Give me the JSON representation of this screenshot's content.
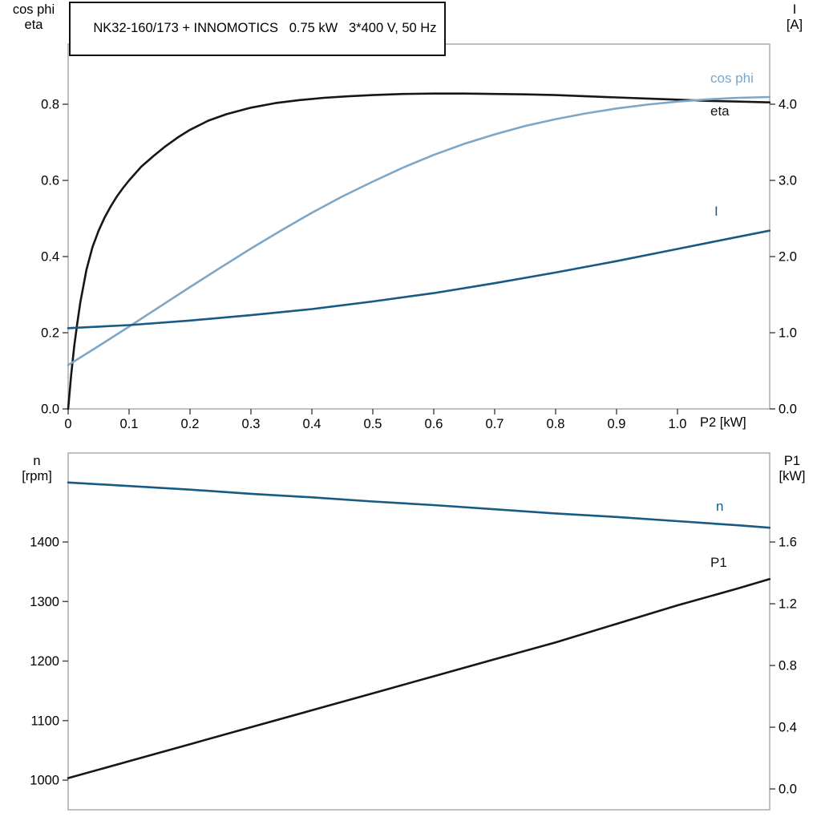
{
  "page": {
    "background": "#ffffff"
  },
  "title_box": {
    "text": "NK32-160/173 + INNOMOTICS   0.75 kW   3*400 V, 50 Hz"
  },
  "axis_corner_labels": {
    "top_left": [
      "cos phi",
      "eta"
    ],
    "top_right": [
      "I",
      "[A]"
    ],
    "bottom_left": [
      "n",
      "[rpm]"
    ],
    "bottom_right": [
      "P1",
      "[kW]"
    ]
  },
  "colors": {
    "black_curve": "#161616",
    "light_blue_curve": "#7ea6c6",
    "dark_blue_curve": "#175a83",
    "frame": "#a6a6a6",
    "tick": "#404040"
  },
  "chart_data": [
    {
      "type": "line",
      "id": "upper",
      "title": "NK32-160/173 + INNOMOTICS   0.75 kW   3*400 V, 50 Hz",
      "xlabel": "P2 [kW]",
      "xlim": [
        0,
        1.1513
      ],
      "x_ticks": {
        "values": [
          0,
          0.1,
          0.2,
          0.3,
          0.4,
          0.5,
          0.6,
          0.7,
          0.8,
          0.9,
          1.0
        ],
        "labels": [
          "0",
          "0.1",
          "0.2",
          "0.3",
          "0.4",
          "0.5",
          "0.6",
          "0.7",
          "0.8",
          "0.9",
          "1.0"
        ]
      },
      "left_axis": {
        "label": "cos phi / eta",
        "lim": [
          0,
          0.958
        ],
        "ticks": [
          0.0,
          0.2,
          0.4,
          0.6,
          0.8
        ],
        "labels": [
          "0.0",
          "0.2",
          "0.4",
          "0.6",
          "0.8"
        ]
      },
      "right_axis": {
        "label": "I [A]",
        "lim": [
          0,
          4.789
        ],
        "ticks": [
          0.0,
          1.0,
          2.0,
          3.0,
          4.0
        ],
        "labels": [
          "0.0",
          "1.0",
          "2.0",
          "3.0",
          "4.0"
        ]
      },
      "grid": false,
      "series": [
        {
          "name": "eta",
          "label": "eta",
          "axis": "left",
          "color": "#161616",
          "points": [
            [
              0,
              0
            ],
            [
              0.005,
              0.09
            ],
            [
              0.01,
              0.165
            ],
            [
              0.015,
              0.225
            ],
            [
              0.02,
              0.28
            ],
            [
              0.03,
              0.365
            ],
            [
              0.04,
              0.425
            ],
            [
              0.05,
              0.468
            ],
            [
              0.06,
              0.503
            ],
            [
              0.07,
              0.532
            ],
            [
              0.08,
              0.558
            ],
            [
              0.09,
              0.58
            ],
            [
              0.1,
              0.6
            ],
            [
              0.12,
              0.636
            ],
            [
              0.14,
              0.664
            ],
            [
              0.16,
              0.69
            ],
            [
              0.18,
              0.713
            ],
            [
              0.2,
              0.733
            ],
            [
              0.23,
              0.757
            ],
            [
              0.26,
              0.774
            ],
            [
              0.3,
              0.791
            ],
            [
              0.34,
              0.803
            ],
            [
              0.38,
              0.811
            ],
            [
              0.42,
              0.817
            ],
            [
              0.46,
              0.821
            ],
            [
              0.5,
              0.824
            ],
            [
              0.55,
              0.827
            ],
            [
              0.6,
              0.828
            ],
            [
              0.65,
              0.828
            ],
            [
              0.7,
              0.827
            ],
            [
              0.75,
              0.826
            ],
            [
              0.8,
              0.824
            ],
            [
              0.85,
              0.821
            ],
            [
              0.9,
              0.818
            ],
            [
              0.95,
              0.815
            ],
            [
              1.0,
              0.812
            ],
            [
              1.05,
              0.809
            ],
            [
              1.1,
              0.807
            ],
            [
              1.151,
              0.805
            ]
          ]
        },
        {
          "name": "cos_phi",
          "label": "cos phi",
          "axis": "left",
          "color": "#7ea6c6",
          "points": [
            [
              0,
              0.115
            ],
            [
              0.05,
              0.165
            ],
            [
              0.1,
              0.216
            ],
            [
              0.15,
              0.268
            ],
            [
              0.2,
              0.32
            ],
            [
              0.25,
              0.371
            ],
            [
              0.3,
              0.421
            ],
            [
              0.35,
              0.469
            ],
            [
              0.4,
              0.515
            ],
            [
              0.45,
              0.558
            ],
            [
              0.5,
              0.597
            ],
            [
              0.55,
              0.634
            ],
            [
              0.6,
              0.667
            ],
            [
              0.65,
              0.696
            ],
            [
              0.7,
              0.721
            ],
            [
              0.75,
              0.743
            ],
            [
              0.8,
              0.761
            ],
            [
              0.85,
              0.776
            ],
            [
              0.9,
              0.789
            ],
            [
              0.95,
              0.799
            ],
            [
              1.0,
              0.807
            ],
            [
              1.05,
              0.813
            ],
            [
              1.1,
              0.817
            ],
            [
              1.151,
              0.819
            ]
          ]
        },
        {
          "name": "I",
          "label": "I",
          "axis": "right",
          "color": "#175a83",
          "points": [
            [
              0,
              1.06
            ],
            [
              0.1,
              1.1
            ],
            [
              0.2,
              1.16
            ],
            [
              0.3,
              1.23
            ],
            [
              0.4,
              1.31
            ],
            [
              0.5,
              1.41
            ],
            [
              0.6,
              1.52
            ],
            [
              0.7,
              1.65
            ],
            [
              0.8,
              1.79
            ],
            [
              0.9,
              1.94
            ],
            [
              1.0,
              2.1
            ],
            [
              1.1,
              2.26
            ],
            [
              1.151,
              2.34
            ]
          ]
        }
      ]
    },
    {
      "type": "line",
      "id": "lower",
      "title": "",
      "xlabel": "",
      "xlim": [
        0,
        1.1513
      ],
      "x_ticks": {
        "values": [],
        "labels": []
      },
      "left_axis": {
        "label": "n [rpm]",
        "lim": [
          950.2,
          1549.5
        ],
        "ticks": [
          1000,
          1100,
          1200,
          1300,
          1400
        ],
        "labels": [
          "1000",
          "1100",
          "1200",
          "1300",
          "1400"
        ]
      },
      "right_axis": {
        "label": "P1 [kW]",
        "lim": [
          -0.135,
          2.177
        ],
        "ticks": [
          0.0,
          0.4,
          0.8,
          1.2,
          1.6
        ],
        "labels": [
          "0.0",
          "0.4",
          "0.8",
          "1.2",
          "1.6"
        ]
      },
      "grid": false,
      "series": [
        {
          "name": "n",
          "label": "n",
          "axis": "left",
          "color": "#175a83",
          "points": [
            [
              0,
              1500
            ],
            [
              0.1,
              1494
            ],
            [
              0.2,
              1488
            ],
            [
              0.3,
              1481
            ],
            [
              0.4,
              1475
            ],
            [
              0.5,
              1468
            ],
            [
              0.6,
              1462
            ],
            [
              0.7,
              1455
            ],
            [
              0.8,
              1448
            ],
            [
              0.9,
              1442
            ],
            [
              1.0,
              1435
            ],
            [
              1.1,
              1428
            ],
            [
              1.151,
              1424
            ]
          ]
        },
        {
          "name": "P1",
          "label": "P1",
          "axis": "right",
          "color": "#161616",
          "points": [
            [
              0,
              0.07
            ],
            [
              0.1,
              0.18
            ],
            [
              0.2,
              0.29
            ],
            [
              0.3,
              0.4
            ],
            [
              0.4,
              0.51
            ],
            [
              0.5,
              0.62
            ],
            [
              0.6,
              0.73
            ],
            [
              0.7,
              0.84
            ],
            [
              0.8,
              0.95
            ],
            [
              0.9,
              1.07
            ],
            [
              1.0,
              1.19
            ],
            [
              1.1,
              1.3
            ],
            [
              1.151,
              1.36
            ]
          ]
        }
      ]
    }
  ]
}
